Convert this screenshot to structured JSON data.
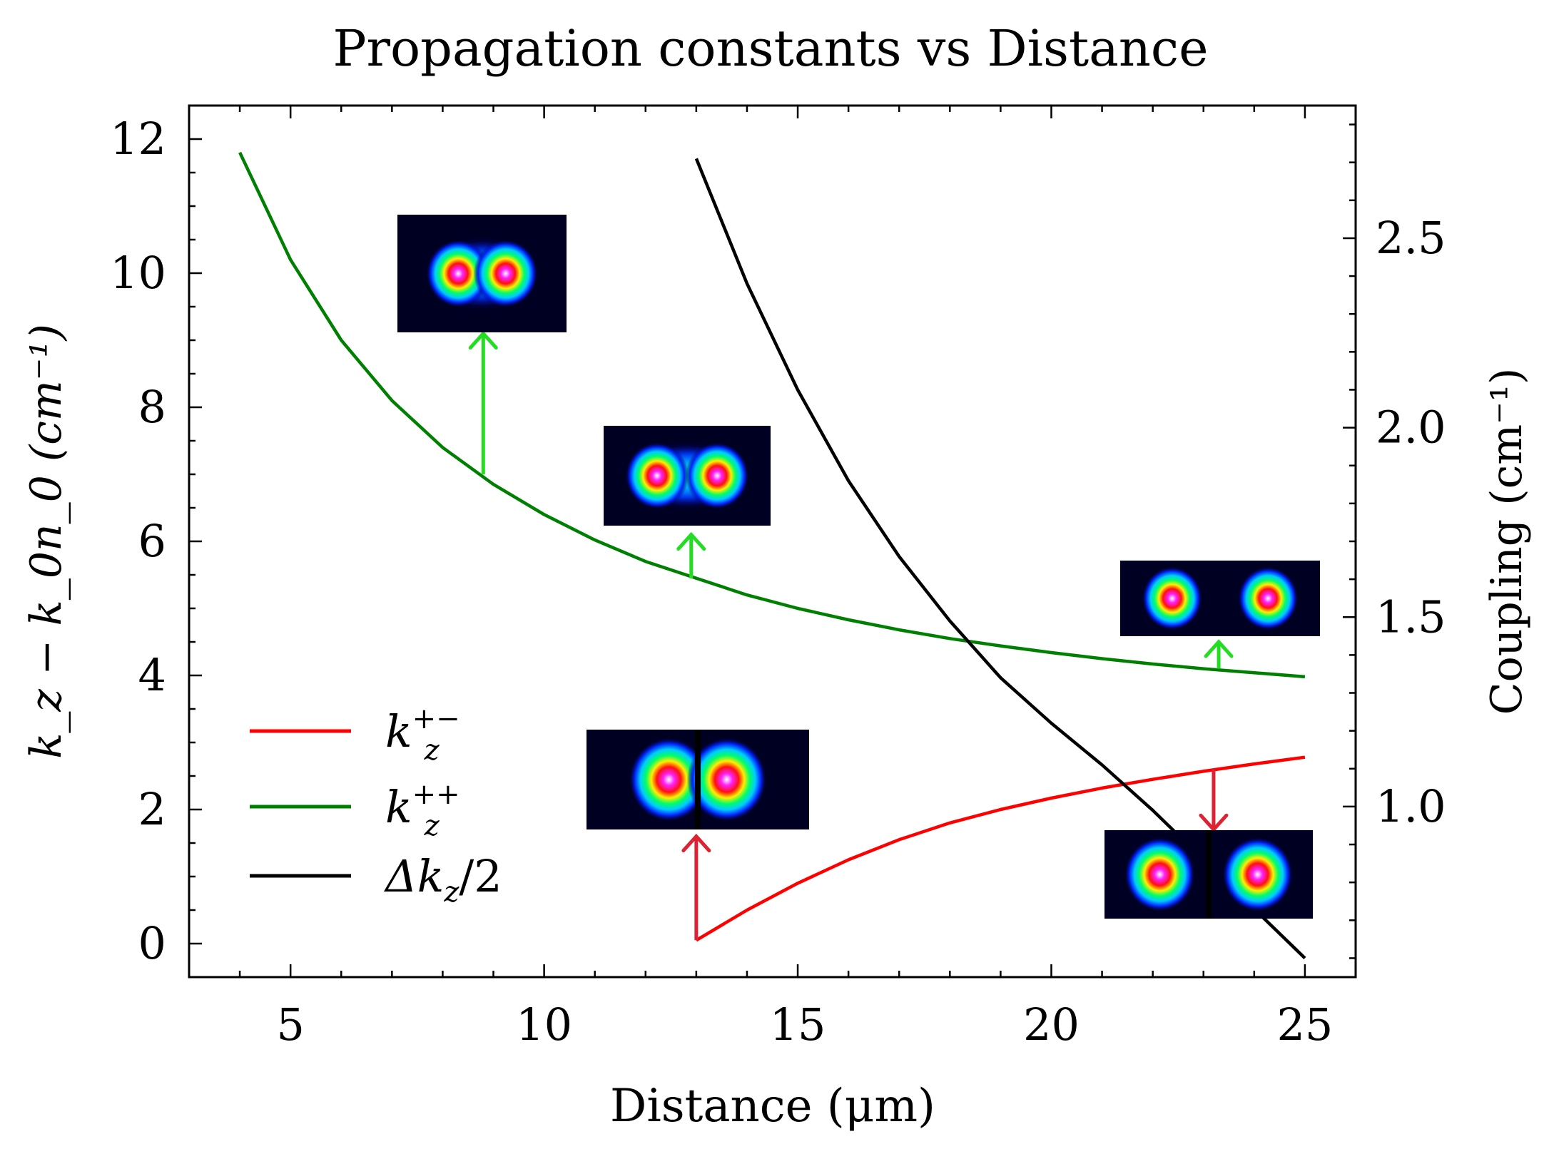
{
  "chart_data": {
    "type": "line",
    "title": "Propagation constants vs Distance",
    "xlabel": "Distance (μm)",
    "ylabel_left": "k_z − k_0n_0 (cm⁻¹)",
    "ylabel_right": "Coupling (cm⁻¹)",
    "xlim": [
      3,
      26
    ],
    "ylim_left": [
      -0.5,
      12.5
    ],
    "ylim_right": [
      0.55,
      2.85
    ],
    "x_ticks": [
      5,
      10,
      15,
      20,
      25
    ],
    "y_left_ticks": [
      0,
      2,
      4,
      6,
      8,
      10,
      12
    ],
    "y_right_ticks": [
      "1.0",
      "1.5",
      "2.0",
      "2.5"
    ],
    "grid": false,
    "legend_position": "lower-left",
    "series": [
      {
        "name": "k_z^{+−}",
        "legend_label": "k",
        "legend_sub": "z",
        "legend_sup": "+−",
        "color": "#ff0000",
        "axis": "left",
        "x": [
          13,
          14,
          15,
          16,
          17,
          18,
          19,
          20,
          21,
          22,
          23,
          24,
          25
        ],
        "y": [
          0.05,
          0.5,
          0.9,
          1.25,
          1.55,
          1.8,
          2.0,
          2.17,
          2.32,
          2.45,
          2.57,
          2.68,
          2.78
        ]
      },
      {
        "name": "k_z^{++}",
        "legend_label": "k",
        "legend_sub": "z",
        "legend_sup": "++",
        "color": "#008000",
        "axis": "left",
        "x": [
          4,
          5,
          6,
          7,
          8,
          9,
          10,
          11,
          12,
          13,
          14,
          15,
          16,
          17,
          18,
          19,
          20,
          21,
          22,
          23,
          24,
          25
        ],
        "y": [
          11.8,
          10.2,
          9.0,
          8.1,
          7.4,
          6.85,
          6.4,
          6.02,
          5.7,
          5.45,
          5.2,
          5.0,
          4.83,
          4.68,
          4.55,
          4.44,
          4.34,
          4.25,
          4.17,
          4.1,
          4.04,
          3.98
        ]
      },
      {
        "name": "Δk_z/2",
        "legend_label": "Δk",
        "legend_sub": "z",
        "legend_after": "/2",
        "color": "#000000",
        "axis": "right",
        "x": [
          13,
          14,
          15,
          16,
          17,
          18,
          19,
          20,
          21,
          22,
          23,
          24,
          25
        ],
        "y": [
          2.71,
          2.38,
          2.1,
          1.86,
          1.66,
          1.49,
          1.34,
          1.22,
          1.11,
          0.99,
          0.86,
          0.73,
          0.6
        ]
      }
    ],
    "annotations": [
      {
        "type": "arrow",
        "color": "#22dd22",
        "x": 8.8,
        "y_from": 7.0,
        "y_to": 9.1,
        "direction": "up"
      },
      {
        "type": "arrow",
        "color": "#22dd22",
        "x": 12.9,
        "y_from": 5.45,
        "y_to": 6.1,
        "direction": "up"
      },
      {
        "type": "arrow",
        "color": "#22dd22",
        "x": 23.3,
        "y_from": 4.1,
        "y_to": 4.5,
        "direction": "up"
      },
      {
        "type": "arrow",
        "color": "#dd2233",
        "x": 13.0,
        "y_from": 0.05,
        "y_to": 1.6,
        "direction": "up"
      },
      {
        "type": "arrow",
        "color": "#dd2233",
        "x": 23.2,
        "y_from": 2.6,
        "y_to": 1.7,
        "direction": "down"
      }
    ],
    "mode_insets": [
      {
        "name": "mode-inset-merged",
        "separation": 0.28,
        "bridge": 0.9,
        "dark_gap": false
      },
      {
        "name": "mode-inset-close",
        "separation": 0.36,
        "bridge": 0.55,
        "dark_gap": false
      },
      {
        "name": "mode-inset-far-symmetric",
        "separation": 0.48,
        "bridge": 0.0,
        "dark_gap": false
      },
      {
        "name": "mode-inset-close-antisymmetric",
        "separation": 0.26,
        "bridge": 0.0,
        "dark_gap": true
      },
      {
        "name": "mode-inset-far-antisymmetric",
        "separation": 0.47,
        "bridge": 0.0,
        "dark_gap": true
      }
    ]
  }
}
